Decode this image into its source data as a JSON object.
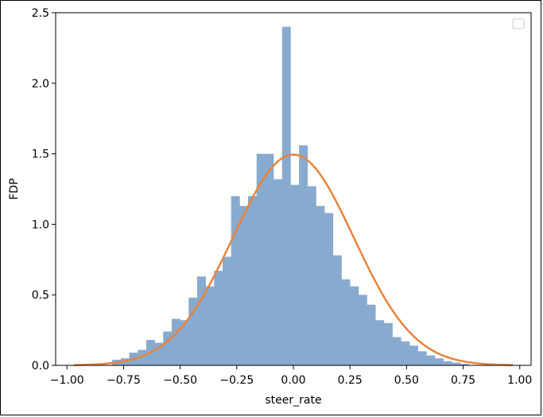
{
  "chart_data": {
    "type": "bar",
    "subtype": "histogram-with-density-curve",
    "xlabel": "steer_rate",
    "ylabel": "FDP",
    "xlim": [
      -1.05,
      1.05
    ],
    "ylim": [
      0,
      2.5
    ],
    "x_ticks": [
      -1.0,
      -0.75,
      -0.5,
      -0.25,
      0.0,
      0.25,
      0.5,
      0.75,
      1.0
    ],
    "x_tick_labels": [
      "−1.00",
      "−0.75",
      "−0.50",
      "−0.25",
      "0.00",
      "0.25",
      "0.50",
      "0.75",
      "1.00"
    ],
    "y_ticks": [
      0.0,
      0.5,
      1.0,
      1.5,
      2.0,
      2.5
    ],
    "y_tick_labels": [
      "0.0",
      "0.5",
      "1.0",
      "1.5",
      "2.0",
      "2.5"
    ],
    "bin_width": 0.0375,
    "bin_starts": [
      -0.8,
      -0.7625,
      -0.725,
      -0.6875,
      -0.65,
      -0.6125,
      -0.575,
      -0.5375,
      -0.5,
      -0.4625,
      -0.425,
      -0.3875,
      -0.35,
      -0.3125,
      -0.275,
      -0.2375,
      -0.2,
      -0.1625,
      -0.125,
      -0.0875,
      -0.05,
      -0.0125,
      0.025,
      0.0625,
      0.1,
      0.1375,
      0.175,
      0.2125,
      0.25,
      0.2875,
      0.325,
      0.3625,
      0.4,
      0.4375,
      0.475,
      0.5125,
      0.55,
      0.5875,
      0.625,
      0.6625,
      0.7,
      0.7375
    ],
    "values": [
      0.04,
      0.05,
      0.09,
      0.11,
      0.18,
      0.16,
      0.24,
      0.33,
      0.32,
      0.48,
      0.63,
      0.56,
      0.67,
      0.77,
      1.2,
      1.13,
      1.2,
      1.5,
      1.5,
      1.32,
      2.4,
      1.28,
      1.56,
      1.27,
      1.13,
      1.08,
      0.78,
      0.61,
      0.56,
      0.5,
      0.43,
      0.32,
      0.3,
      0.2,
      0.17,
      0.14,
      0.1,
      0.07,
      0.05,
      0.03,
      0.02,
      0.01
    ],
    "curve": {
      "kind": "normal-pdf",
      "mean": 0.0,
      "std": 0.267,
      "x_range": [
        -0.97,
        0.97
      ]
    },
    "legend": {
      "position": "top-right",
      "entries": []
    },
    "colors": {
      "bars": "#88aacf",
      "curve": "#e8833a",
      "axis": "#000000"
    },
    "grid": false
  }
}
